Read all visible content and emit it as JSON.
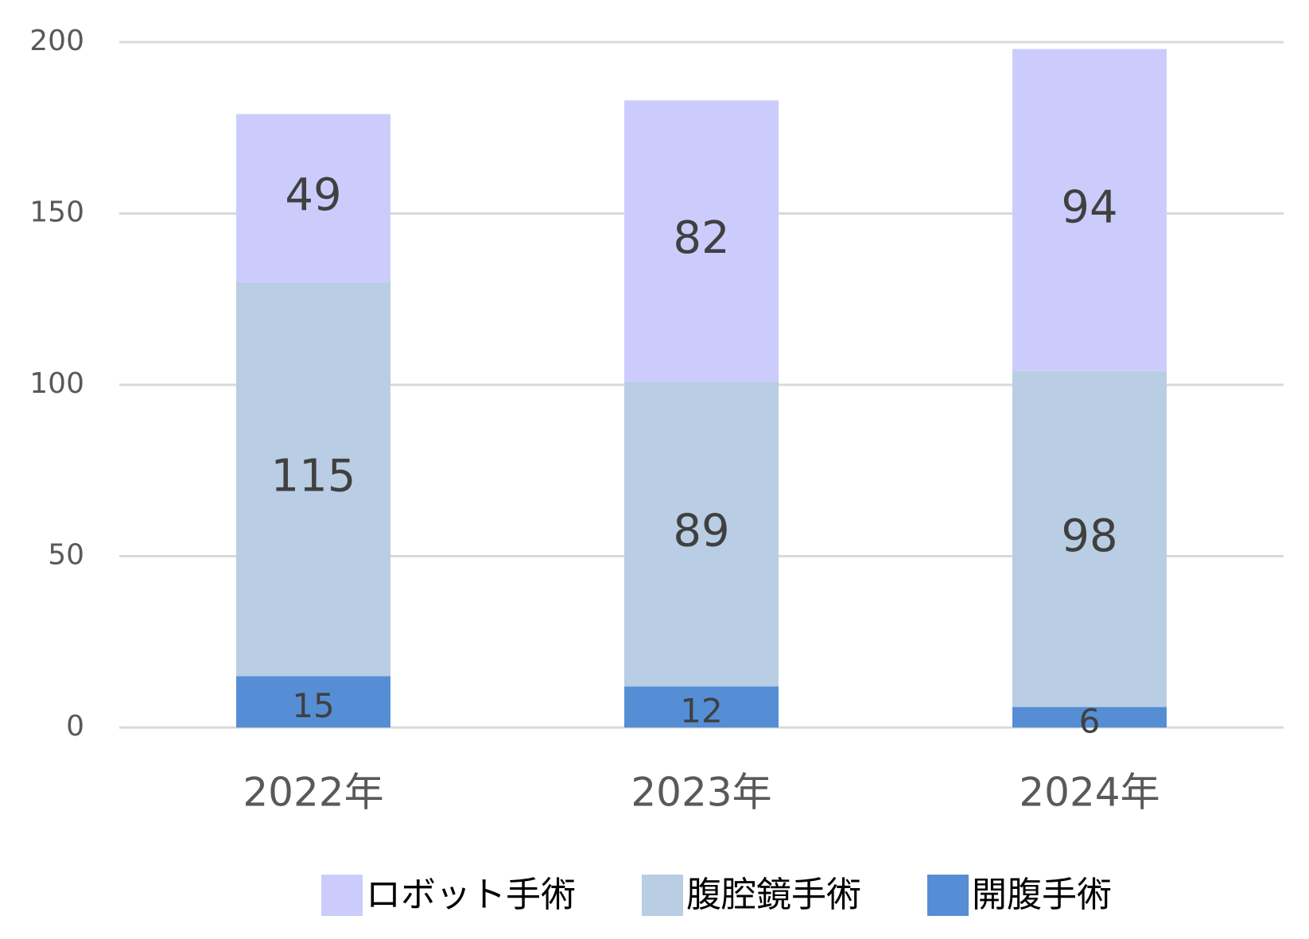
{
  "chart_data": {
    "type": "stacked_bar",
    "categories": [
      "2022年",
      "2023年",
      "2024年"
    ],
    "series": [
      {
        "name": "ロボット手術",
        "color": "#ccccfc",
        "values": [
          49,
          82,
          94
        ]
      },
      {
        "name": "腹腔鏡手術",
        "color": "#b9cde4",
        "values": [
          115,
          89,
          98
        ]
      },
      {
        "name": "開腹手術",
        "color": "#558ed5",
        "values": [
          15,
          12,
          6
        ]
      }
    ],
    "ylim": [
      0,
      200
    ],
    "yticks": [
      0,
      50,
      100,
      150,
      200
    ],
    "grid": true
  }
}
